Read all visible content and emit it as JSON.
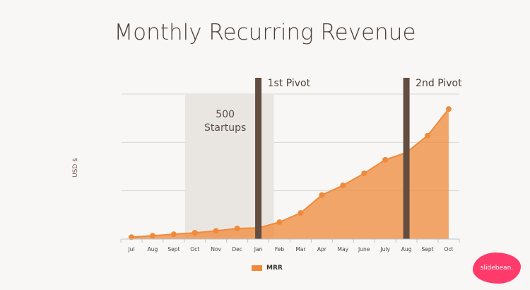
{
  "chart_data": {
    "type": "area",
    "title": "Monthly Recurring Revenue",
    "xlabel": "",
    "ylabel": "USD $",
    "categories": [
      "Jul",
      "Aug",
      "Sept",
      "Oct",
      "Nov",
      "Dec",
      "Jan",
      "Feb",
      "Mar",
      "Apr",
      "May",
      "June",
      "July",
      "Aug",
      "Sept",
      "Oct"
    ],
    "series": [
      {
        "name": "MRR",
        "color": "#f08a3a",
        "values": [
          0.04,
          0.07,
          0.1,
          0.13,
          0.17,
          0.22,
          0.23,
          0.35,
          0.54,
          0.91,
          1.11,
          1.36,
          1.64,
          1.79,
          2.14,
          2.69
        ]
      }
    ],
    "ylim": [
      0,
      3
    ],
    "grid": true,
    "y_tick_labels_shown": false,
    "legend_position": "bottom-center",
    "annotations": [
      {
        "type": "shaded-range",
        "label_line1": "500",
        "label_line2": "Startups",
        "from_index": 3,
        "to_index": 6.7
      },
      {
        "type": "vertical-bar",
        "label": "1st Pivot",
        "at_index": 6
      },
      {
        "type": "vertical-bar",
        "label": "2nd Pivot",
        "at_index": 13
      }
    ]
  },
  "brand": "slidebean."
}
